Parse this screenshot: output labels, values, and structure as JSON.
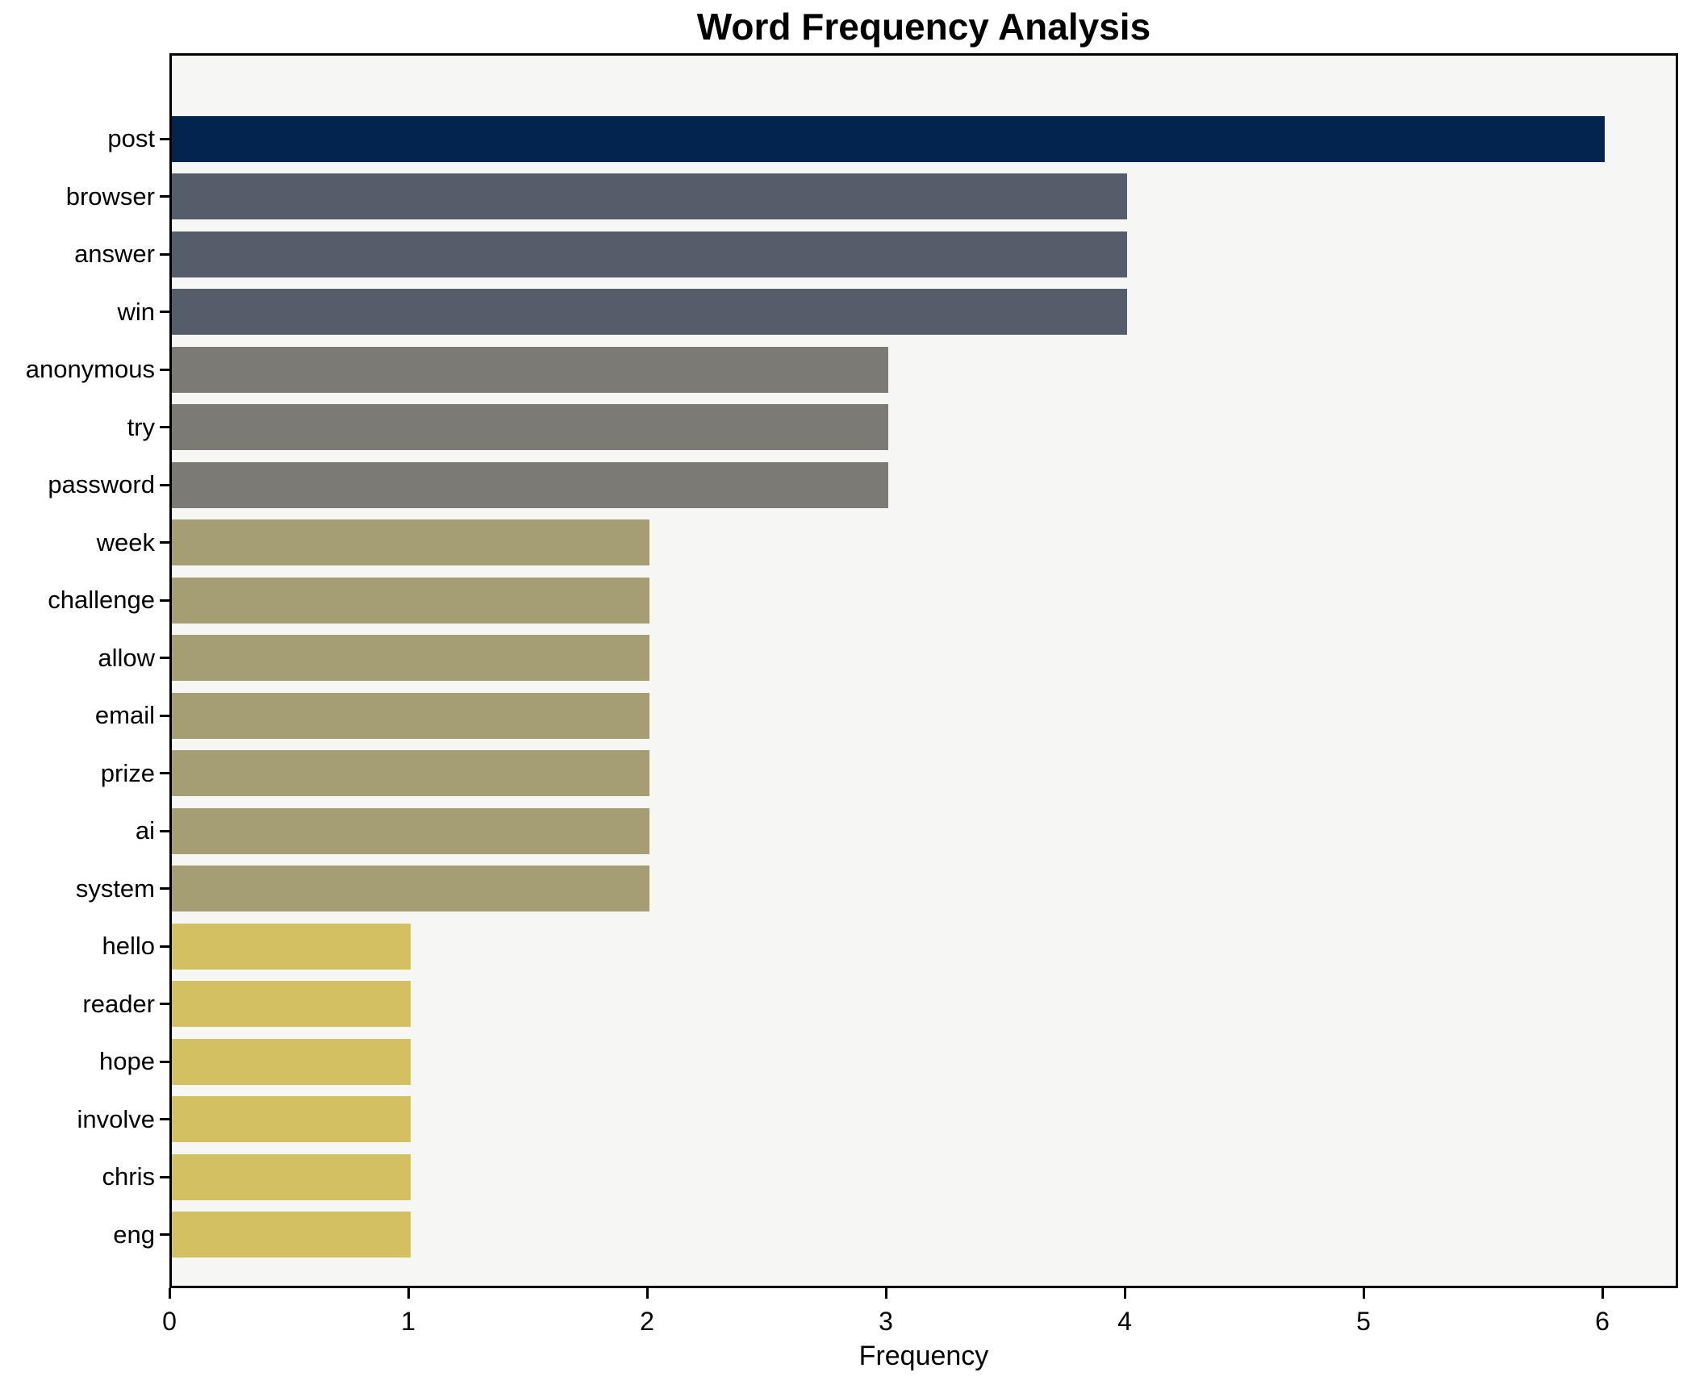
{
  "chart_data": {
    "type": "bar",
    "orientation": "horizontal",
    "title": "Word Frequency Analysis",
    "xlabel": "Frequency",
    "ylabel": "",
    "categories": [
      "post",
      "browser",
      "answer",
      "win",
      "anonymous",
      "try",
      "password",
      "week",
      "challenge",
      "allow",
      "email",
      "prize",
      "ai",
      "system",
      "hello",
      "reader",
      "hope",
      "involve",
      "chris",
      "eng"
    ],
    "values": [
      6,
      4,
      4,
      4,
      3,
      3,
      3,
      2,
      2,
      2,
      2,
      2,
      2,
      2,
      1,
      1,
      1,
      1,
      1,
      1
    ],
    "x_ticks": [
      "0",
      "1",
      "2",
      "3",
      "4",
      "5",
      "6"
    ],
    "xlim": [
      0,
      6.31
    ],
    "grid": false,
    "legend": null,
    "bar_colors_by_value": {
      "6": "#02244e",
      "4": "#575c6b",
      "3": "#7b7a74",
      "2": "#a59d73",
      "1": "#d3c062"
    },
    "plot_background": "#f6f6f5",
    "figure_background": "#ffffff",
    "spine_color": "#000000",
    "text_color": "#000000"
  }
}
